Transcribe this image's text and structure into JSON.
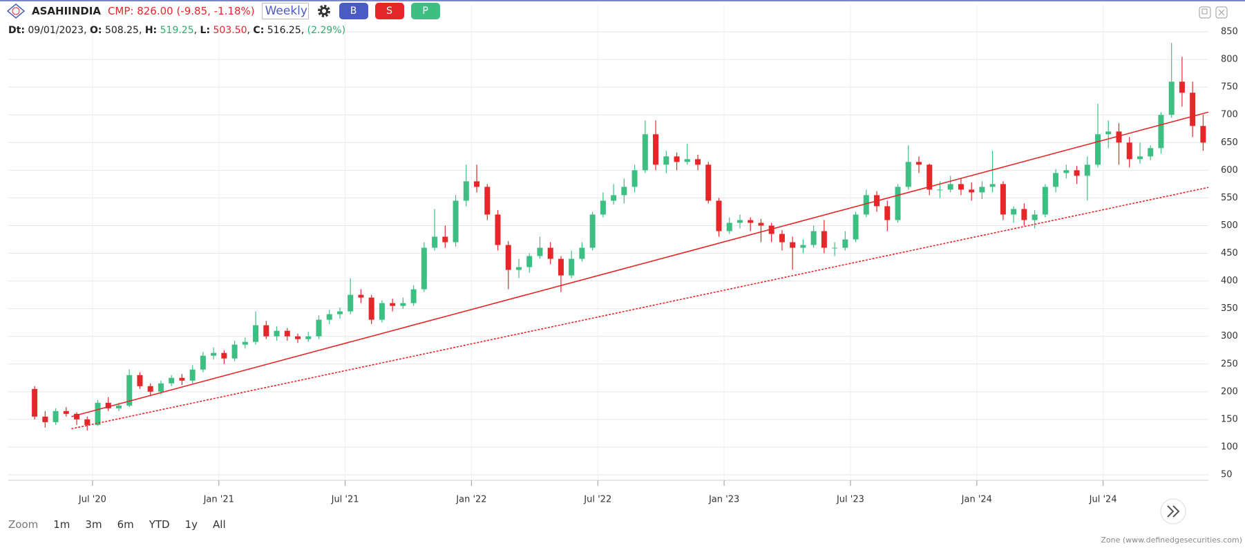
{
  "header": {
    "symbol": "ASAHIINDIA",
    "cmp": "CMP: 826.00 (-9.85, -1.18%)",
    "interval": "Weekly",
    "buttons": [
      "B",
      "S",
      "P"
    ]
  },
  "ohlc_info": {
    "date_label": "Dt:",
    "date": "09/01/2023",
    "open_label": "O:",
    "open": "508.25",
    "high_label": "H:",
    "high": "519.25",
    "low_label": "L:",
    "low": "503.50",
    "close_label": "C:",
    "close": "516.25",
    "change": "(2.29%)"
  },
  "chart_data": {
    "type": "candlestick",
    "x": [
      "2020-04",
      "2020-04",
      "2020-05",
      "2020-05",
      "2020-06",
      "2020-06",
      "2020-07",
      "2020-07",
      "2020-08",
      "2020-08",
      "2020-09",
      "2020-09",
      "2020-10",
      "2020-10",
      "2020-11",
      "2020-11",
      "2020-12",
      "2020-12",
      "2021-01",
      "2021-01",
      "2021-02",
      "2021-02",
      "2021-03",
      "2021-03",
      "2021-04",
      "2021-04",
      "2021-05",
      "2021-05",
      "2021-06",
      "2021-06",
      "2021-07",
      "2021-07",
      "2021-08",
      "2021-08",
      "2021-09",
      "2021-09",
      "2021-10",
      "2021-10",
      "2021-11",
      "2021-11",
      "2021-12",
      "2021-12",
      "2022-01",
      "2022-01",
      "2022-02",
      "2022-02",
      "2022-03",
      "2022-03",
      "2022-04",
      "2022-04",
      "2022-05",
      "2022-05",
      "2022-06",
      "2022-06",
      "2022-07",
      "2022-07",
      "2022-08",
      "2022-08",
      "2022-09",
      "2022-09",
      "2022-10",
      "2022-10",
      "2022-11",
      "2022-11",
      "2022-12",
      "2022-12",
      "2023-01",
      "2023-01",
      "2023-02",
      "2023-02",
      "2023-03",
      "2023-03",
      "2023-04",
      "2023-04",
      "2023-05",
      "2023-05",
      "2023-06",
      "2023-06",
      "2023-07",
      "2023-07",
      "2023-08",
      "2023-08",
      "2023-09",
      "2023-09",
      "2023-10",
      "2023-10",
      "2023-11",
      "2023-11",
      "2023-12",
      "2023-12",
      "2024-01",
      "2024-01",
      "2024-02",
      "2024-02",
      "2024-03",
      "2024-03",
      "2024-04",
      "2024-04",
      "2024-05",
      "2024-05",
      "2024-06",
      "2024-06",
      "2024-07",
      "2024-07",
      "2024-08",
      "2024-08",
      "2024-09",
      "2024-09",
      "2024-10",
      "2024-10",
      "2024-11",
      "2024-11"
    ],
    "open": [
      205,
      155,
      145,
      165,
      160,
      150,
      140,
      180,
      170,
      175,
      230,
      210,
      200,
      215,
      225,
      220,
      240,
      265,
      270,
      260,
      285,
      290,
      320,
      300,
      310,
      300,
      295,
      300,
      330,
      340,
      345,
      375,
      370,
      330,
      360,
      355,
      360,
      385,
      460,
      480,
      470,
      545,
      580,
      570,
      520,
      465,
      420,
      425,
      445,
      460,
      440,
      410,
      440,
      460,
      520,
      545,
      555,
      570,
      600,
      665,
      610,
      625,
      615,
      620,
      610,
      545,
      490,
      505,
      510,
      505,
      500,
      485,
      470,
      460,
      465,
      490,
      460,
      460,
      475,
      520,
      555,
      535,
      510,
      570,
      615,
      610,
      565,
      565,
      575,
      565,
      560,
      570,
      575,
      520,
      530,
      510,
      520,
      570,
      595,
      600,
      590,
      610,
      665,
      670,
      650,
      620,
      625,
      640,
      700,
      760,
      740,
      680
    ],
    "high": [
      210,
      165,
      170,
      172,
      163,
      155,
      185,
      190,
      180,
      240,
      235,
      215,
      220,
      230,
      232,
      248,
      272,
      280,
      275,
      292,
      298,
      345,
      328,
      318,
      315,
      305,
      308,
      338,
      348,
      352,
      405,
      385,
      375,
      365,
      368,
      370,
      392,
      470,
      530,
      500,
      555,
      610,
      610,
      575,
      528,
      472,
      440,
      450,
      480,
      470,
      445,
      455,
      470,
      525,
      560,
      575,
      585,
      610,
      690,
      690,
      635,
      632,
      648,
      628,
      615,
      550,
      515,
      520,
      515,
      512,
      505,
      492,
      480,
      475,
      500,
      510,
      470,
      490,
      525,
      565,
      562,
      545,
      575,
      645,
      625,
      612,
      580,
      590,
      585,
      578,
      580,
      635,
      580,
      535,
      540,
      528,
      575,
      602,
      610,
      608,
      625,
      720,
      690,
      685,
      660,
      650,
      645,
      705,
      830,
      805,
      760,
      700
    ],
    "low": [
      150,
      135,
      140,
      155,
      140,
      130,
      138,
      165,
      165,
      172,
      205,
      192,
      195,
      210,
      212,
      215,
      235,
      258,
      250,
      255,
      278,
      285,
      295,
      292,
      292,
      288,
      290,
      295,
      322,
      332,
      340,
      360,
      322,
      325,
      345,
      350,
      355,
      380,
      455,
      460,
      462,
      535,
      560,
      510,
      455,
      385,
      405,
      415,
      440,
      430,
      380,
      405,
      435,
      455,
      515,
      538,
      540,
      560,
      595,
      600,
      595,
      600,
      610,
      600,
      540,
      480,
      485,
      495,
      490,
      470,
      470,
      455,
      420,
      450,
      460,
      450,
      445,
      455,
      470,
      515,
      525,
      490,
      505,
      565,
      595,
      555,
      550,
      560,
      555,
      545,
      548,
      560,
      510,
      505,
      500,
      495,
      515,
      560,
      585,
      575,
      545,
      605,
      640,
      610,
      605,
      612,
      618,
      630,
      695,
      715,
      660,
      635
    ],
    "close": [
      155,
      145,
      165,
      160,
      150,
      140,
      180,
      170,
      175,
      230,
      210,
      200,
      215,
      225,
      220,
      240,
      265,
      270,
      260,
      285,
      290,
      320,
      300,
      310,
      300,
      295,
      300,
      330,
      340,
      345,
      375,
      370,
      330,
      360,
      355,
      360,
      385,
      460,
      480,
      470,
      545,
      580,
      570,
      520,
      465,
      420,
      425,
      445,
      460,
      440,
      410,
      440,
      460,
      520,
      545,
      555,
      570,
      600,
      665,
      610,
      625,
      615,
      620,
      610,
      545,
      490,
      505,
      510,
      505,
      500,
      485,
      470,
      460,
      465,
      490,
      460,
      460,
      475,
      520,
      555,
      535,
      510,
      570,
      615,
      610,
      565,
      565,
      575,
      565,
      560,
      570,
      575,
      520,
      530,
      510,
      520,
      570,
      595,
      600,
      590,
      610,
      665,
      670,
      650,
      620,
      625,
      640,
      700,
      760,
      740,
      680,
      650
    ],
    "up_color": "#3dbf83",
    "down_color": "#e5272a",
    "trendlines": [
      {
        "x": [
          "2020-06",
          "2024-12"
        ],
        "y": [
          155,
          705
        ],
        "color": "#e5272a",
        "style": "solid"
      },
      {
        "x": [
          "2020-06",
          "2024-12"
        ],
        "y": [
          133,
          569
        ],
        "color": "#e5272a",
        "style": "dotted"
      }
    ],
    "xlim": [
      "2020-03",
      "2024-12"
    ],
    "xticks": [
      {
        "value": "2020-07",
        "label": "Jul '20"
      },
      {
        "value": "2021-01",
        "label": "Jan '21"
      },
      {
        "value": "2021-07",
        "label": "Jul '21"
      },
      {
        "value": "2022-01",
        "label": "Jan '22"
      },
      {
        "value": "2022-07",
        "label": "Jul '22"
      },
      {
        "value": "2023-01",
        "label": "Jan '23"
      },
      {
        "value": "2023-07",
        "label": "Jul '23"
      },
      {
        "value": "2024-01",
        "label": "Jan '24"
      },
      {
        "value": "2024-07",
        "label": "Jul '24"
      }
    ],
    "ylim": [
      40,
      900
    ],
    "yticks": [
      50,
      100,
      150,
      200,
      250,
      300,
      350,
      400,
      450,
      500,
      550,
      600,
      650,
      700,
      750,
      800,
      850
    ],
    "grid": true
  },
  "zoom": {
    "label": "Zoom",
    "options": [
      "1m",
      "3m",
      "6m",
      "YTD",
      "1y",
      "All"
    ]
  },
  "footer": "Zone (www.definedgesecurities.com)"
}
